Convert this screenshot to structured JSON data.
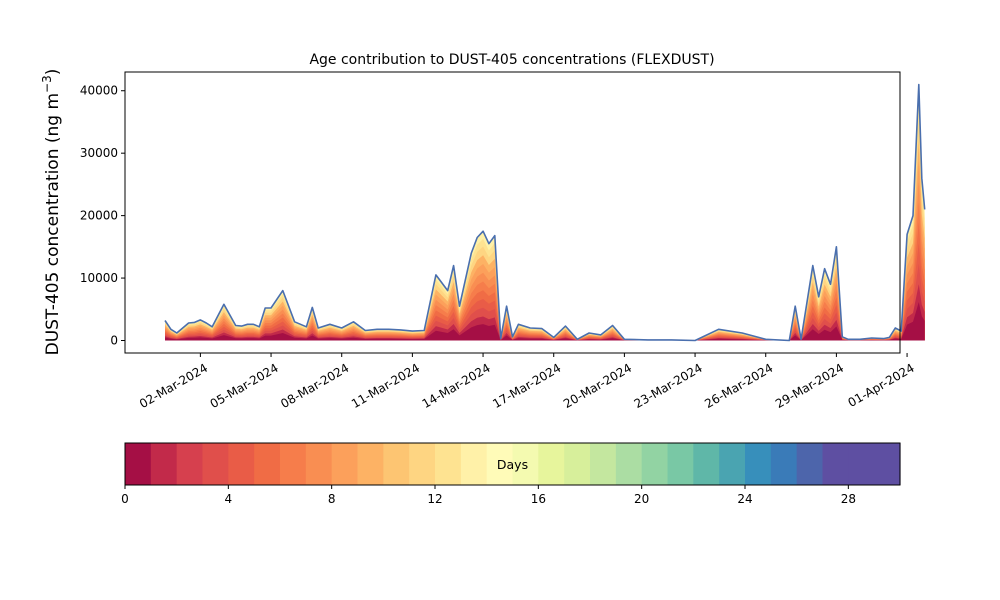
{
  "chart_data": {
    "type": "area",
    "title": "Age contribution to DUST-405 concentrations (FLEXDUST)",
    "ylabel": "DUST-405 concentration (ng m⁻³)",
    "ylabel_main": "DUST-405 concentration (ng m",
    "ylabel_sup": "−3",
    "ylabel_close": ")",
    "ylim": [
      -2000,
      43000
    ],
    "xlim_days": [
      -2.2,
      30.7
    ],
    "yticks": [
      0,
      10000,
      20000,
      30000,
      40000
    ],
    "ytick_labels": [
      "0",
      "10000",
      "20000",
      "30000",
      "40000"
    ],
    "xtick_labels": [
      "02-Mar-2024",
      "05-Mar-2024",
      "08-Mar-2024",
      "11-Mar-2024",
      "14-Mar-2024",
      "17-Mar-2024",
      "20-Mar-2024",
      "23-Mar-2024",
      "26-Mar-2024",
      "29-Mar-2024",
      "01-Apr-2024"
    ],
    "total_series": {
      "x_dates": [
        "2024-02-29T12:00",
        "2024-02-29T18:00",
        "2024-03-01T00:00",
        "2024-03-01T12:00",
        "2024-03-01T18:00",
        "2024-03-02T00:00",
        "2024-03-02T06:00",
        "2024-03-02T12:00",
        "2024-03-03T00:00",
        "2024-03-03T12:00",
        "2024-03-03T18:00",
        "2024-03-04T00:00",
        "2024-03-04T06:00",
        "2024-03-04T12:00",
        "2024-03-04T18:00",
        "2024-03-05T00:00",
        "2024-03-05T12:00",
        "2024-03-06T00:00",
        "2024-03-06T12:00",
        "2024-03-06T18:00",
        "2024-03-07T00:00",
        "2024-03-07T12:00",
        "2024-03-08T00:00",
        "2024-03-08T12:00",
        "2024-03-09T00:00",
        "2024-03-09T12:00",
        "2024-03-10T00:00",
        "2024-03-10T12:00",
        "2024-03-11T00:00",
        "2024-03-11T12:00",
        "2024-03-12T00:00",
        "2024-03-12T12:00",
        "2024-03-12T18:00",
        "2024-03-13T00:00",
        "2024-03-13T12:00",
        "2024-03-13T18:00",
        "2024-03-14T00:00",
        "2024-03-14T06:00",
        "2024-03-14T12:00",
        "2024-03-14T18:00",
        "2024-03-15T00:00",
        "2024-03-15T06:00",
        "2024-03-15T12:00",
        "2024-03-16T00:00",
        "2024-03-16T12:00",
        "2024-03-17T00:00",
        "2024-03-17T12:00",
        "2024-03-18T00:00",
        "2024-03-18T12:00",
        "2024-03-19T00:00",
        "2024-03-19T12:00",
        "2024-03-20T00:00",
        "2024-03-21T00:00",
        "2024-03-22T00:00",
        "2024-03-23T00:00",
        "2024-03-24T00:00",
        "2024-03-25T00:00",
        "2024-03-26T00:00",
        "2024-03-27T00:00",
        "2024-03-27T06:00",
        "2024-03-27T12:00",
        "2024-03-28T00:00",
        "2024-03-28T06:00",
        "2024-03-28T12:00",
        "2024-03-28T18:00",
        "2024-03-29T00:00",
        "2024-03-29T06:00",
        "2024-03-29T12:00",
        "2024-03-30T00:00",
        "2024-03-30T12:00",
        "2024-03-31T00:00",
        "2024-03-31T06:00",
        "2024-03-31T12:00",
        "2024-03-31T18:00",
        "2024-04-01T00:00",
        "2024-04-01T06:00",
        "2024-04-01T12:00",
        "2024-04-01T15:00",
        "2024-04-01T18:00"
      ],
      "y": [
        3200,
        1800,
        1200,
        2800,
        2900,
        3300,
        2800,
        2200,
        5800,
        2400,
        2300,
        2600,
        2600,
        2200,
        5200,
        5200,
        8000,
        3000,
        2200,
        5300,
        2000,
        2600,
        2000,
        3000,
        1600,
        1800,
        1800,
        1700,
        1500,
        1600,
        10500,
        8000,
        12000,
        5500,
        14000,
        16500,
        17500,
        15500,
        16800,
        300,
        5500,
        600,
        2600,
        2000,
        1900,
        500,
        2300,
        200,
        1200,
        900,
        2400,
        200,
        100,
        100,
        0,
        1800,
        1200,
        200,
        0,
        5500,
        200,
        12000,
        7000,
        11500,
        9000,
        15000,
        600,
        200,
        200,
        400,
        300,
        500,
        2000,
        1500,
        17000,
        20000,
        41000,
        26000,
        21000
      ],
      "color": "#4a6fae"
    },
    "colorbar": {
      "label": "Days",
      "range": [
        0,
        30
      ],
      "ticks": [
        0,
        4,
        8,
        12,
        16,
        20,
        24,
        28
      ],
      "tick_labels": [
        "0",
        "4",
        "8",
        "12",
        "16",
        "20",
        "24",
        "28"
      ],
      "colors": [
        "#a50f45",
        "#c22a4a",
        "#d6404e",
        "#e04f4b",
        "#e95c47",
        "#f06c45",
        "#f67d4b",
        "#f98e52",
        "#fca05b",
        "#fdb264",
        "#fdc572",
        "#fed582",
        "#fee391",
        "#fff1a8",
        "#fffbb8",
        "#f4fab0",
        "#e7f59c",
        "#d7ef9b",
        "#c4e79f",
        "#abdda3",
        "#92d3a3",
        "#79c8a5",
        "#5fb7a8",
        "#4aa4b1",
        "#378fbb",
        "#3a7bb8",
        "#4d65ab",
        "#5e4fa2",
        "#5e4fa2",
        "#5e4fa2"
      ]
    }
  }
}
